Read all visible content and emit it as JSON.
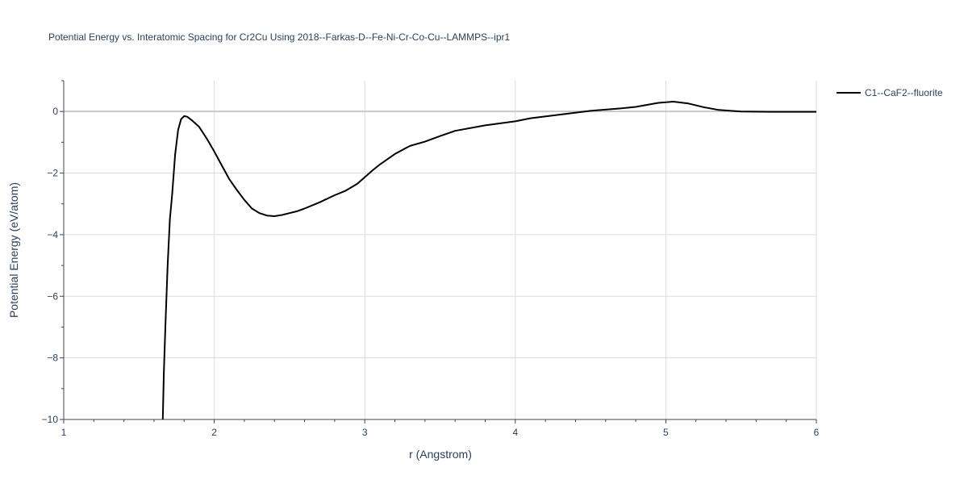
{
  "chart_data": {
    "type": "line",
    "title": "Potential Energy vs. Interatomic Spacing for Cr2Cu Using 2018--Farkas-D--Fe-Ni-Cr-Co-Cu--LAMMPS--ipr1",
    "xlabel": "r (Angstrom)",
    "ylabel": "Potential Energy (eV/atom)",
    "xlim": [
      1,
      6
    ],
    "ylim": [
      -10,
      1
    ],
    "xticks": [
      1,
      2,
      3,
      4,
      5,
      6
    ],
    "xtick_labels": [
      "1",
      "2",
      "3",
      "4",
      "5",
      "6"
    ],
    "yticks": [
      0,
      -2,
      -4,
      -6,
      -8,
      -10
    ],
    "ytick_labels": [
      "0",
      "−2",
      "−4",
      "−6",
      "−8",
      "−10"
    ],
    "grid": true,
    "legend_position": "top-right outside",
    "series": [
      {
        "name": "C1--CaF2--fluorite",
        "color": "#000000",
        "x": [
          1.658,
          1.665,
          1.675,
          1.69,
          1.705,
          1.72,
          1.74,
          1.76,
          1.78,
          1.8,
          1.82,
          1.85,
          1.9,
          1.95,
          2.0,
          2.05,
          2.1,
          2.15,
          2.2,
          2.25,
          2.3,
          2.35,
          2.4,
          2.45,
          2.5,
          2.55,
          2.6,
          2.7,
          2.8,
          2.87,
          2.95,
          3.05,
          3.1,
          3.2,
          3.3,
          3.4,
          3.5,
          3.6,
          3.8,
          4.0,
          4.1,
          4.3,
          4.5,
          4.7,
          4.8,
          4.95,
          5.05,
          5.15,
          5.25,
          5.35,
          5.5,
          5.7,
          5.85,
          6.0
        ],
        "y": [
          -10,
          -8.5,
          -7.0,
          -5.0,
          -3.5,
          -2.7,
          -1.4,
          -0.6,
          -0.25,
          -0.15,
          -0.17,
          -0.28,
          -0.5,
          -0.88,
          -1.3,
          -1.75,
          -2.2,
          -2.55,
          -2.87,
          -3.15,
          -3.3,
          -3.38,
          -3.4,
          -3.36,
          -3.3,
          -3.24,
          -3.15,
          -2.95,
          -2.72,
          -2.58,
          -2.35,
          -1.92,
          -1.72,
          -1.38,
          -1.12,
          -0.98,
          -0.8,
          -0.63,
          -0.45,
          -0.32,
          -0.22,
          -0.1,
          0.02,
          0.1,
          0.15,
          0.28,
          0.32,
          0.26,
          0.14,
          0.05,
          0.0,
          -0.01,
          -0.01,
          -0.01
        ]
      }
    ]
  }
}
